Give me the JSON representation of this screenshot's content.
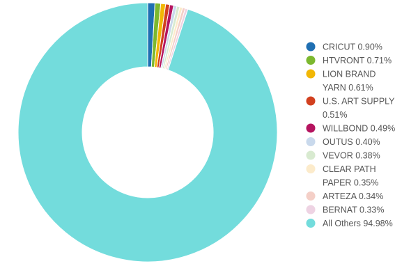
{
  "chart_data": {
    "type": "pie",
    "donut": true,
    "legend_position": "right",
    "slices": [
      {
        "label_lines": [
          "CRICUT 0.90%"
        ],
        "value": 0.9,
        "color": "#1f6fb2"
      },
      {
        "label_lines": [
          "HTVRONT 0.71%"
        ],
        "value": 0.71,
        "color": "#7cb82f"
      },
      {
        "label_lines": [
          "LION BRAND",
          "YARN 0.61%"
        ],
        "value": 0.61,
        "color": "#f2b705"
      },
      {
        "label_lines": [
          "U.S. ART SUPPLY",
          "0.51%"
        ],
        "value": 0.51,
        "color": "#d2401f"
      },
      {
        "label_lines": [
          "WILLBOND 0.49%"
        ],
        "value": 0.49,
        "color": "#b5145f"
      },
      {
        "label_lines": [
          "OUTUS 0.40%"
        ],
        "value": 0.4,
        "color": "#c9d9ec"
      },
      {
        "label_lines": [
          "VEVOR 0.38%"
        ],
        "value": 0.38,
        "color": "#d8ead0"
      },
      {
        "label_lines": [
          "CLEAR PATH",
          "PAPER 0.35%"
        ],
        "value": 0.35,
        "color": "#fcebcb"
      },
      {
        "label_lines": [
          "ARTEZA 0.34%"
        ],
        "value": 0.34,
        "color": "#f4cfc7"
      },
      {
        "label_lines": [
          "BERNAT 0.33%"
        ],
        "value": 0.33,
        "color": "#eed3e3"
      },
      {
        "label_lines": [
          "All Others 94.98%"
        ],
        "value": 94.98,
        "color": "#73dcdc"
      }
    ]
  }
}
